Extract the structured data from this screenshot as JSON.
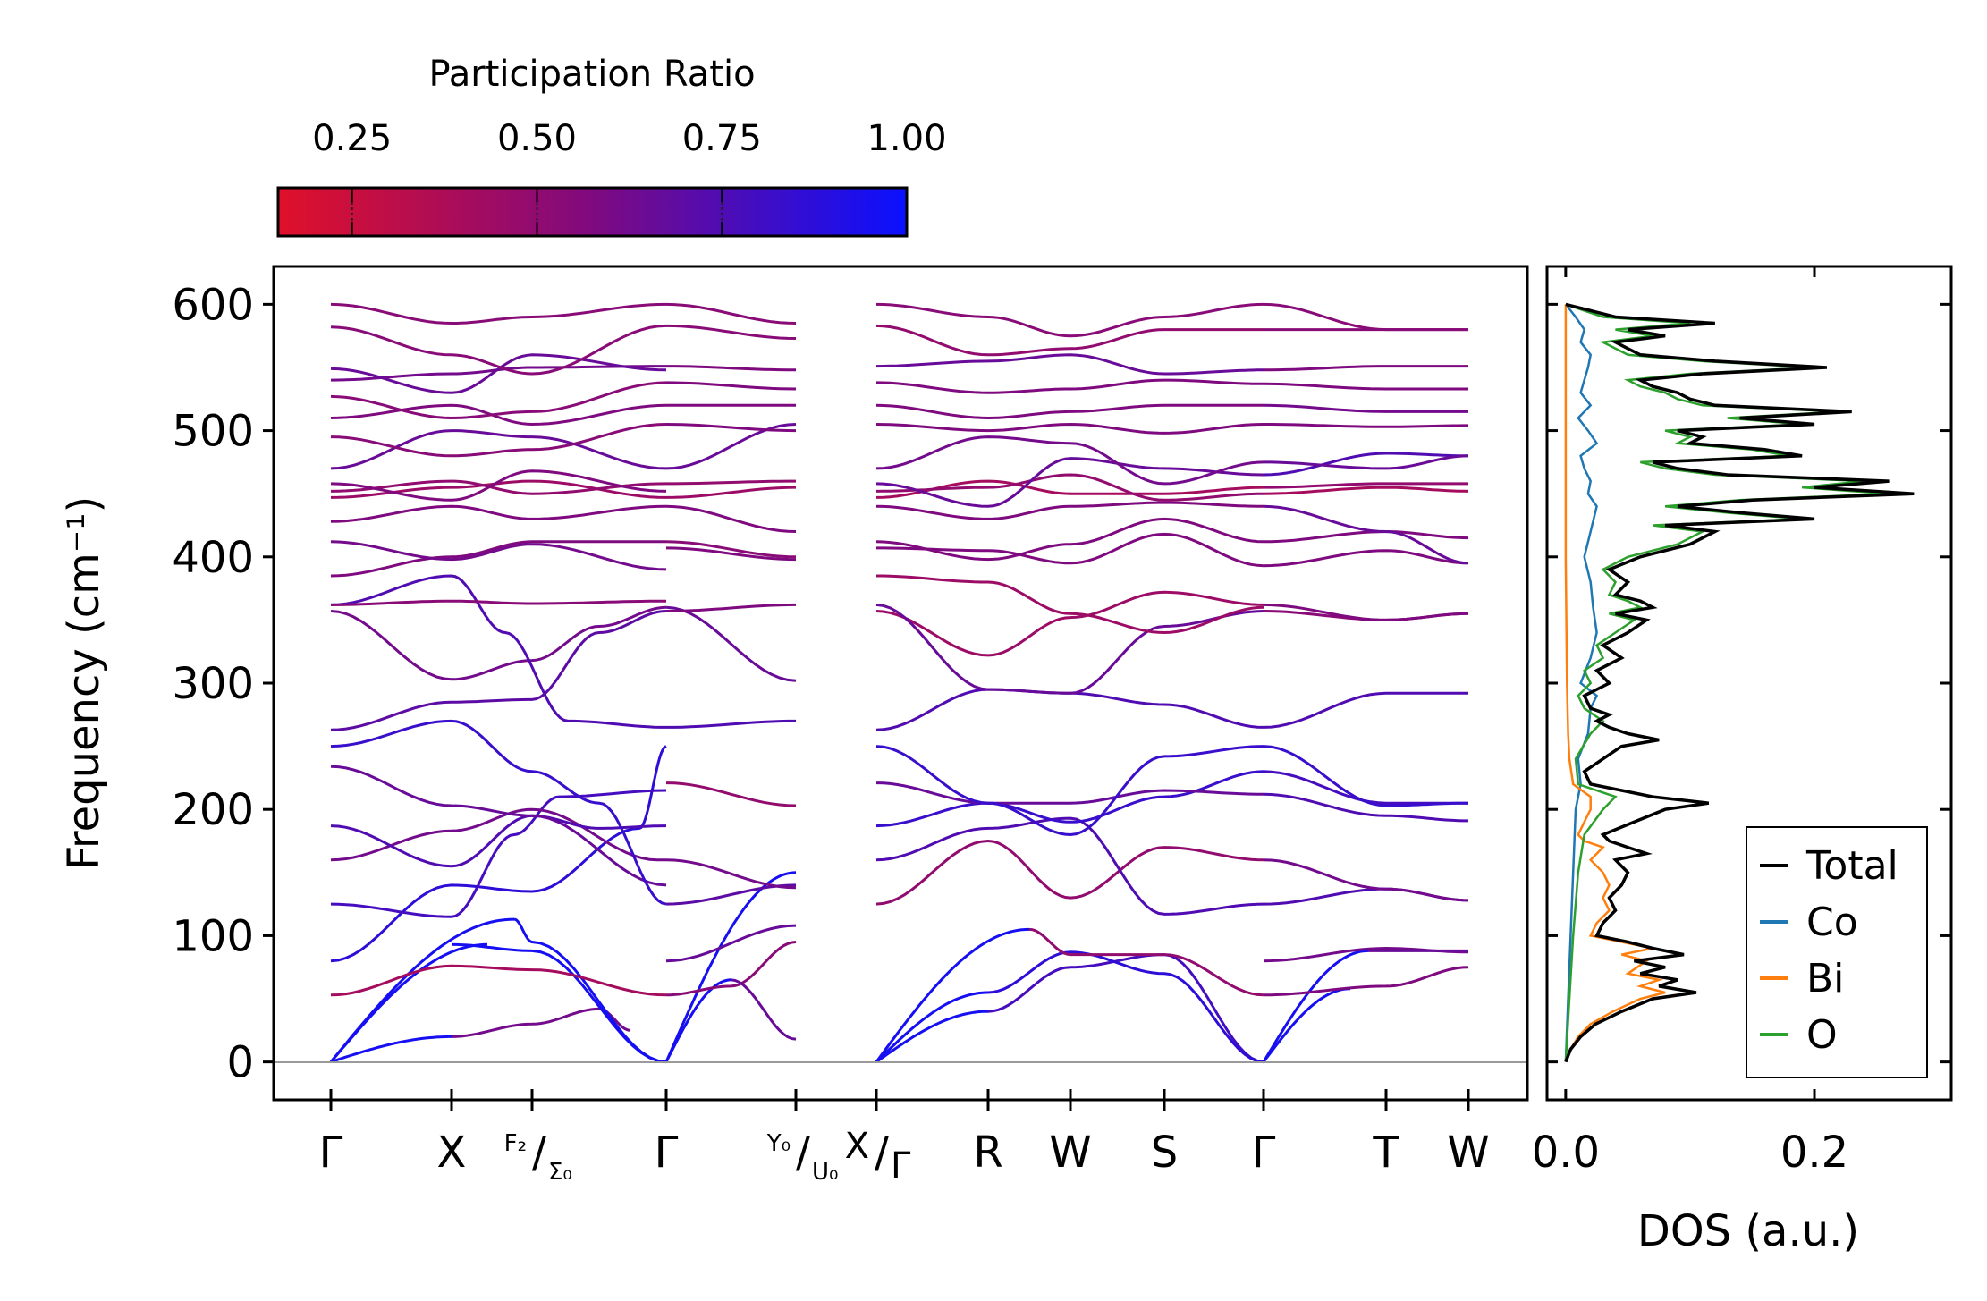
{
  "chart_data": [
    {
      "type": "line",
      "title": "",
      "ylabel": "Frequency (cm⁻¹)",
      "ylim": [
        -30,
        630
      ],
      "yticks": [
        0,
        100,
        200,
        300,
        400,
        500,
        600
      ],
      "colorbar": {
        "label": "Participation Ratio",
        "range": [
          0.15,
          1.0
        ],
        "ticks": [
          0.25,
          0.5,
          0.75,
          1.0
        ],
        "tick_labels": [
          "0.25",
          "0.50",
          "0.75",
          "1.00"
        ],
        "color_low": "#e0102a",
        "color_mid": "#7f0a7f",
        "color_high": "#0a10ff"
      },
      "path": {
        "segments": [
          {
            "labels": [
              "Γ",
              "X",
              "F₂/Σ₀",
              "Γ",
              "Y₀/U₀"
            ],
            "lengths": [
              1.0,
              0.67,
              1.1,
              1.05
            ]
          },
          {
            "labels": [
              "X/Γ",
              "R",
              "W",
              "S",
              "Γ",
              "T",
              "W"
            ],
            "lengths": [
              0.95,
              0.7,
              0.8,
              0.85,
              1.05,
              0.7
            ]
          }
        ],
        "tick_labels": [
          "Γ",
          "X",
          "F₂/Σ₀",
          "Γ",
          "Y₀/U₀",
          "X/Γ",
          "R",
          "W",
          "S",
          "Γ",
          "T",
          "W"
        ]
      },
      "bands_approx": {
        "acoustic_Gamma_X": [
          0,
          20,
          75,
          93
        ],
        "optical_Gamma_start": [
          53,
          80,
          125,
          160,
          187,
          234,
          250,
          263,
          357,
          362,
          385,
          412,
          428,
          447,
          452,
          458,
          470,
          495,
          510,
          527,
          540,
          549,
          582,
          600
        ],
        "mid_Gamma": [
          0,
          53,
          80,
          125,
          160,
          221,
          250,
          263,
          357,
          367,
          407,
          432,
          447,
          458,
          470,
          505,
          520,
          538,
          551,
          583,
          600
        ],
        "end_W": [
          75,
          87,
          128,
          191,
          205,
          292,
          355,
          395,
          415,
          452,
          458,
          480,
          504,
          515,
          533,
          551,
          580
        ]
      }
    },
    {
      "type": "line",
      "xlabel": "DOS (a.u.)",
      "xlim": [
        -0.015,
        0.31
      ],
      "xticks": [
        0.0,
        0.2
      ],
      "xtick_labels": [
        "0.0",
        "0.2"
      ],
      "ylim": [
        -30,
        630
      ],
      "legend": "bottom-right",
      "series": [
        {
          "name": "Total",
          "color": "#000000",
          "freq": [
            0,
            10,
            20,
            30,
            40,
            50,
            55,
            60,
            65,
            70,
            75,
            80,
            85,
            90,
            95,
            100,
            110,
            120,
            130,
            140,
            150,
            160,
            165,
            170,
            175,
            180,
            190,
            200,
            205,
            210,
            215,
            220,
            230,
            240,
            250,
            255,
            260,
            265,
            270,
            275,
            280,
            290,
            300,
            310,
            320,
            330,
            340,
            350,
            355,
            360,
            365,
            370,
            380,
            390,
            400,
            410,
            420,
            425,
            430,
            435,
            440,
            445,
            450,
            455,
            460,
            465,
            470,
            475,
            480,
            485,
            490,
            495,
            500,
            505,
            510,
            515,
            520,
            525,
            530,
            535,
            540,
            545,
            550,
            555,
            560,
            565,
            570,
            575,
            580,
            585,
            590,
            595,
            600
          ],
          "values": [
            0.0,
            0.004,
            0.012,
            0.024,
            0.045,
            0.07,
            0.105,
            0.075,
            0.09,
            0.06,
            0.08,
            0.055,
            0.095,
            0.07,
            0.05,
            0.025,
            0.03,
            0.04,
            0.035,
            0.045,
            0.05,
            0.04,
            0.065,
            0.05,
            0.035,
            0.03,
            0.055,
            0.08,
            0.115,
            0.07,
            0.045,
            0.02,
            0.015,
            0.03,
            0.045,
            0.075,
            0.05,
            0.035,
            0.025,
            0.035,
            0.02,
            0.015,
            0.035,
            0.025,
            0.045,
            0.03,
            0.05,
            0.065,
            0.04,
            0.07,
            0.06,
            0.04,
            0.05,
            0.035,
            0.06,
            0.1,
            0.12,
            0.08,
            0.2,
            0.14,
            0.09,
            0.15,
            0.28,
            0.2,
            0.26,
            0.13,
            0.09,
            0.07,
            0.19,
            0.16,
            0.1,
            0.11,
            0.09,
            0.2,
            0.14,
            0.23,
            0.12,
            0.1,
            0.09,
            0.07,
            0.06,
            0.11,
            0.21,
            0.12,
            0.06,
            0.05,
            0.04,
            0.08,
            0.05,
            0.12,
            0.04,
            0.02,
            0.0
          ]
        },
        {
          "name": "Co",
          "color": "#1f77b4",
          "freq": [
            0,
            50,
            100,
            150,
            200,
            220,
            240,
            260,
            280,
            290,
            300,
            320,
            340,
            360,
            380,
            400,
            420,
            440,
            450,
            460,
            470,
            480,
            490,
            500,
            510,
            520,
            530,
            540,
            550,
            560,
            570,
            580,
            590,
            600
          ],
          "values": [
            0.0,
            0.002,
            0.004,
            0.006,
            0.008,
            0.012,
            0.01,
            0.018,
            0.02,
            0.025,
            0.012,
            0.02,
            0.025,
            0.022,
            0.02,
            0.015,
            0.02,
            0.025,
            0.018,
            0.02,
            0.015,
            0.012,
            0.025,
            0.018,
            0.01,
            0.02,
            0.012,
            0.015,
            0.018,
            0.02,
            0.012,
            0.015,
            0.008,
            0.0
          ]
        },
        {
          "name": "Bi",
          "color": "#ff7f0e",
          "freq": [
            0,
            10,
            20,
            30,
            40,
            50,
            55,
            60,
            65,
            70,
            80,
            85,
            90,
            100,
            110,
            120,
            130,
            140,
            150,
            160,
            170,
            175,
            180,
            190,
            200,
            210,
            220,
            240,
            260,
            300,
            400,
            500,
            600
          ],
          "values": [
            0.0,
            0.004,
            0.01,
            0.02,
            0.038,
            0.06,
            0.08,
            0.06,
            0.075,
            0.05,
            0.065,
            0.045,
            0.07,
            0.02,
            0.025,
            0.035,
            0.03,
            0.035,
            0.03,
            0.02,
            0.03,
            0.015,
            0.01,
            0.015,
            0.02,
            0.02,
            0.006,
            0.003,
            0.002,
            0.001,
            0.0,
            0.0,
            0.0
          ]
        },
        {
          "name": "O",
          "color": "#2ca02c",
          "freq": [
            0,
            50,
            100,
            150,
            180,
            200,
            210,
            220,
            240,
            260,
            270,
            280,
            290,
            300,
            310,
            320,
            330,
            340,
            350,
            355,
            360,
            365,
            370,
            380,
            390,
            400,
            410,
            420,
            425,
            430,
            435,
            440,
            445,
            450,
            455,
            460,
            465,
            470,
            475,
            480,
            485,
            490,
            495,
            500,
            505,
            510,
            515,
            520,
            525,
            530,
            535,
            540,
            545,
            550,
            555,
            560,
            565,
            570,
            575,
            580,
            585,
            590,
            595,
            600
          ],
          "values": [
            0.0,
            0.003,
            0.006,
            0.01,
            0.015,
            0.03,
            0.04,
            0.01,
            0.008,
            0.02,
            0.03,
            0.015,
            0.01,
            0.02,
            0.015,
            0.03,
            0.025,
            0.04,
            0.055,
            0.035,
            0.06,
            0.05,
            0.035,
            0.04,
            0.03,
            0.05,
            0.09,
            0.11,
            0.07,
            0.19,
            0.13,
            0.08,
            0.14,
            0.26,
            0.19,
            0.24,
            0.12,
            0.08,
            0.06,
            0.18,
            0.15,
            0.09,
            0.1,
            0.08,
            0.19,
            0.13,
            0.22,
            0.11,
            0.09,
            0.08,
            0.06,
            0.05,
            0.1,
            0.2,
            0.11,
            0.05,
            0.04,
            0.03,
            0.07,
            0.04,
            0.1,
            0.03,
            0.015,
            0.0
          ]
        }
      ]
    }
  ]
}
